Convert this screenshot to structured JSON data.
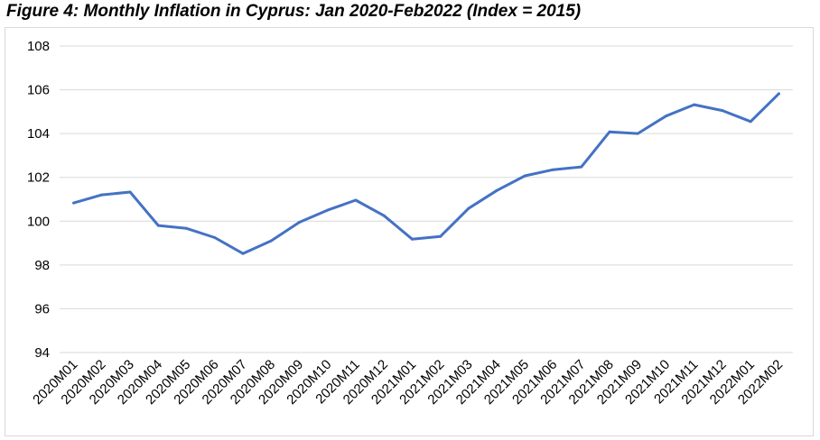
{
  "title": "Figure 4: Monthly Inflation in Cyprus: Jan 2020-Feb2022 (Index = 2015)",
  "colors": {
    "line": "#4472c4",
    "grid": "#d9d9d9"
  },
  "chart_data": {
    "type": "line",
    "title": "Figure 4: Monthly Inflation in Cyprus: Jan 2020-Feb2022 (Index = 2015)",
    "xlabel": "",
    "ylabel": "",
    "ylim": [
      94,
      108
    ],
    "yticks": [
      94,
      96,
      98,
      100,
      102,
      104,
      106,
      108
    ],
    "grid": true,
    "legend": "none",
    "categories": [
      "2020M01",
      "2020M02",
      "2020M03",
      "2020M04",
      "2020M05",
      "2020M06",
      "2020M07",
      "2020M08",
      "2020M09",
      "2020M10",
      "2020M11",
      "2020M12",
      "2021M01",
      "2021M02",
      "2021M03",
      "2021M04",
      "2021M05",
      "2021M06",
      "2021M07",
      "2021M08",
      "2021M09",
      "2021M10",
      "2021M11",
      "2021M12",
      "2022M01",
      "2022M02"
    ],
    "series": [
      {
        "values": [
          100.83,
          101.2,
          101.33,
          99.8,
          99.67,
          99.25,
          98.52,
          99.1,
          99.95,
          100.5,
          100.96,
          100.25,
          99.18,
          99.3,
          100.58,
          101.4,
          102.07,
          102.35,
          102.48,
          104.08,
          104.0,
          104.8,
          105.32,
          105.05,
          104.55,
          105.82
        ]
      }
    ]
  }
}
